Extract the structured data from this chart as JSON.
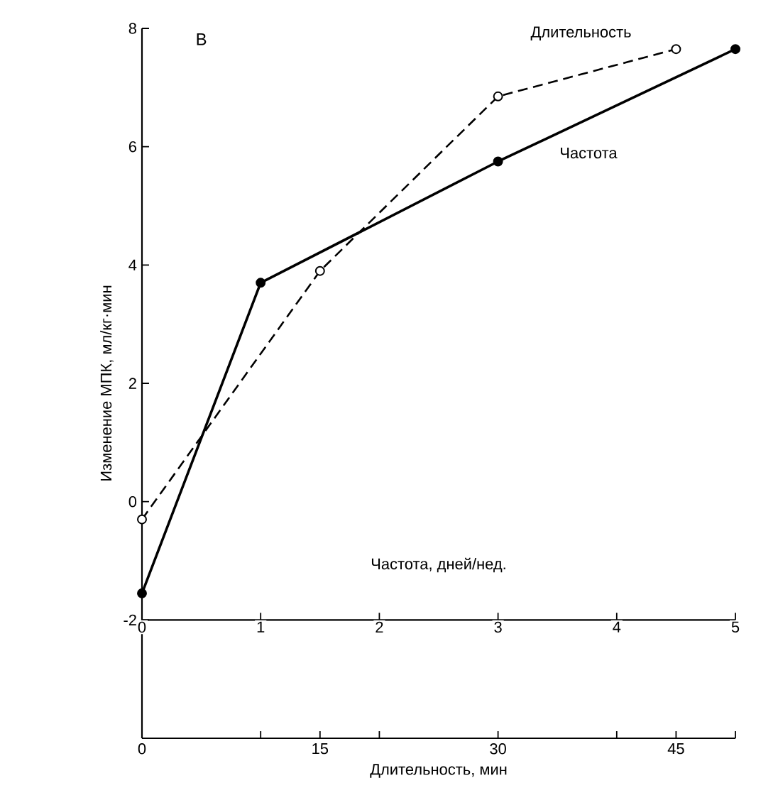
{
  "chart_data": {
    "type": "line",
    "xlabel": "Частота, дней/нед.",
    "x2label": "Длительность, мин",
    "ylabel": "Изменение МПК, мл/кг·мин",
    "annotations": [
      "В"
    ],
    "xlim": [
      0,
      5
    ],
    "xticks": [
      0,
      1,
      2,
      3,
      4,
      5
    ],
    "x2lim": [
      0,
      50
    ],
    "x2ticks": [
      0,
      {
        "value": 10,
        "label": null
      },
      15,
      {
        "value": 20,
        "label": null
      },
      30,
      {
        "value": 40,
        "label": null
      },
      45,
      {
        "value": 50,
        "label": null
      }
    ],
    "ylim": [
      -4,
      8
    ],
    "yticks": [
      {
        "value": -4,
        "label": null
      },
      -2,
      0,
      2,
      4,
      6,
      8
    ],
    "grid": false,
    "marker": "circle",
    "series": [
      {
        "name": "Частота",
        "color": "#000000",
        "line_style": "solid",
        "x": [
          0,
          1,
          3,
          5
        ],
        "values": [
          -1.55,
          3.7,
          5.75,
          7.65
        ]
      },
      {
        "name": "Длительность",
        "color": "#000000",
        "line_style": "dashed",
        "axis": "x2",
        "x": [
          0,
          15,
          30,
          45
        ],
        "values": [
          -0.3,
          3.9,
          6.85,
          7.65
        ]
      }
    ]
  }
}
